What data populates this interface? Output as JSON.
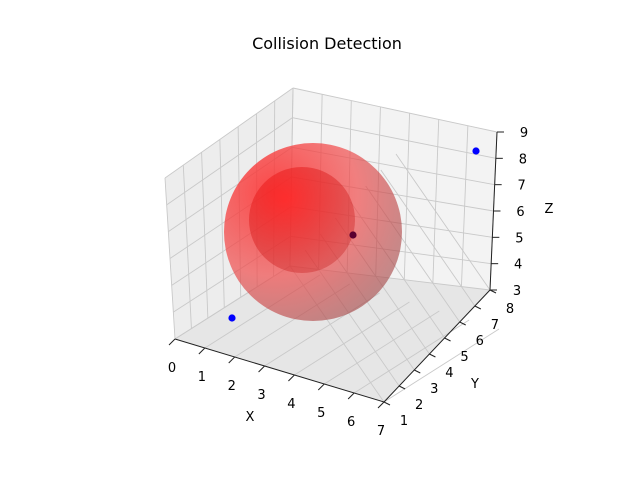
{
  "chart_data": {
    "type": "scatter",
    "title": "Collision Detection",
    "xlabel": "X",
    "ylabel": "Y",
    "zlabel": "Z",
    "xlim": [
      0,
      7
    ],
    "ylim": [
      1,
      8
    ],
    "zlim": [
      3,
      9
    ],
    "x_ticks": [
      "0",
      "1",
      "2",
      "3",
      "4",
      "5",
      "6",
      "7"
    ],
    "y_ticks": [
      "1",
      "2",
      "3",
      "4",
      "5",
      "6",
      "7",
      "8"
    ],
    "z_ticks": [
      "3",
      "4",
      "5",
      "6",
      "7",
      "8",
      "9"
    ],
    "grid": true,
    "points": [
      {
        "x": 0.2,
        "y": 1.6,
        "z": 6.5,
        "color": "#0000ff"
      },
      {
        "x": 4.6,
        "y": 4.6,
        "z": 6.5,
        "color": "#5a0030"
      },
      {
        "x": 3.8,
        "y": 8.0,
        "z": 9.0,
        "color": "#0000ff"
      }
    ],
    "sphere": {
      "center": [
        3.1,
        4.4,
        5.6
      ],
      "radius": 2.8,
      "color": "#ff0000",
      "opacity": 0.45
    }
  }
}
